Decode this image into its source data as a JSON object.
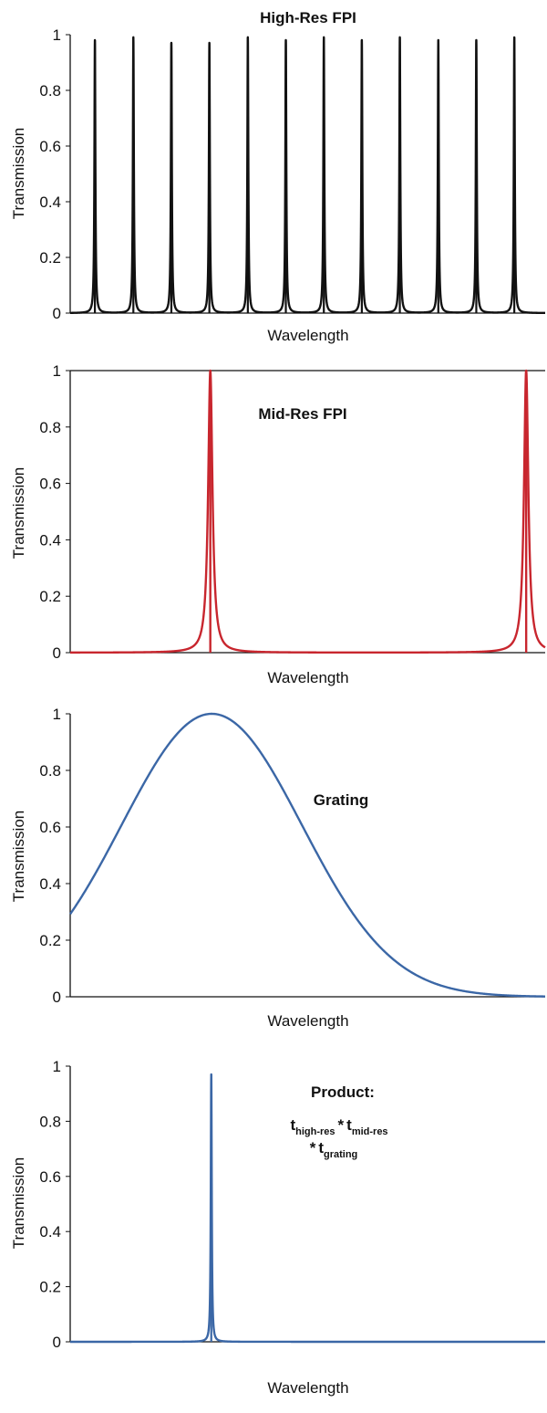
{
  "chart_data": [
    {
      "type": "line",
      "title": "High-Res FPI",
      "xlabel": "Wavelength",
      "ylabel": "Transmission",
      "ylim": [
        0,
        1
      ],
      "xlim": [
        0,
        1
      ],
      "yticks": [
        "0",
        "0.2",
        "0.4",
        "0.6",
        "0.8",
        "1"
      ],
      "grid": false,
      "x_tick_labels": false,
      "color": "#111111",
      "series": [
        {
          "kind": "comb",
          "peaks": [
            0.052,
            0.133,
            0.213,
            0.293,
            0.374,
            0.454,
            0.534,
            0.614,
            0.694,
            0.775,
            0.855,
            0.935
          ],
          "peak_heights": [
            0.98,
            0.99,
            0.97,
            0.97,
            0.99,
            0.98,
            0.99,
            0.98,
            0.99,
            0.98,
            0.98,
            0.99
          ],
          "width": 0.0012
        }
      ]
    },
    {
      "type": "line",
      "title": "Mid-Res FPI",
      "xlabel": "Wavelength",
      "ylabel": "Transmission",
      "ylim": [
        0,
        1
      ],
      "xlim": [
        0,
        1
      ],
      "yticks": [
        "0",
        "0.2",
        "0.4",
        "0.6",
        "0.8",
        "1"
      ],
      "grid": false,
      "x_tick_labels": false,
      "color": "#c8262e",
      "series": [
        {
          "kind": "comb",
          "peaks": [
            0.295,
            0.96
          ],
          "peak_heights": [
            1.0,
            1.0
          ],
          "width": 0.0055
        }
      ]
    },
    {
      "type": "line",
      "title": "Grating",
      "xlabel": "Wavelength",
      "ylabel": "Transmission",
      "ylim": [
        0,
        1
      ],
      "xlim": [
        0,
        1
      ],
      "yticks": [
        "0",
        "0.2",
        "0.4",
        "0.6",
        "0.8",
        "1"
      ],
      "grid": false,
      "x_tick_labels": false,
      "color": "#3b67a6",
      "series": [
        {
          "kind": "gaussian",
          "center": 0.298,
          "sigma": 0.19,
          "peak": 1.0
        }
      ]
    },
    {
      "type": "line",
      "title": "Product:",
      "formula": {
        "t": "t",
        "sub_high": "high-res",
        "sub_mid": "mid-res",
        "sub_grating": "grating",
        "op": "*"
      },
      "xlabel": "Wavelength",
      "ylabel": "Transmission",
      "ylim": [
        0,
        1
      ],
      "xlim": [
        0,
        1
      ],
      "yticks": [
        "0",
        "0.2",
        "0.4",
        "0.6",
        "0.8",
        "1"
      ],
      "grid": false,
      "x_tick_labels": false,
      "color": "#3b67a6",
      "series": [
        {
          "kind": "comb",
          "peaks": [
            0.297
          ],
          "peak_heights": [
            0.97
          ],
          "width": 0.0012
        }
      ]
    }
  ]
}
